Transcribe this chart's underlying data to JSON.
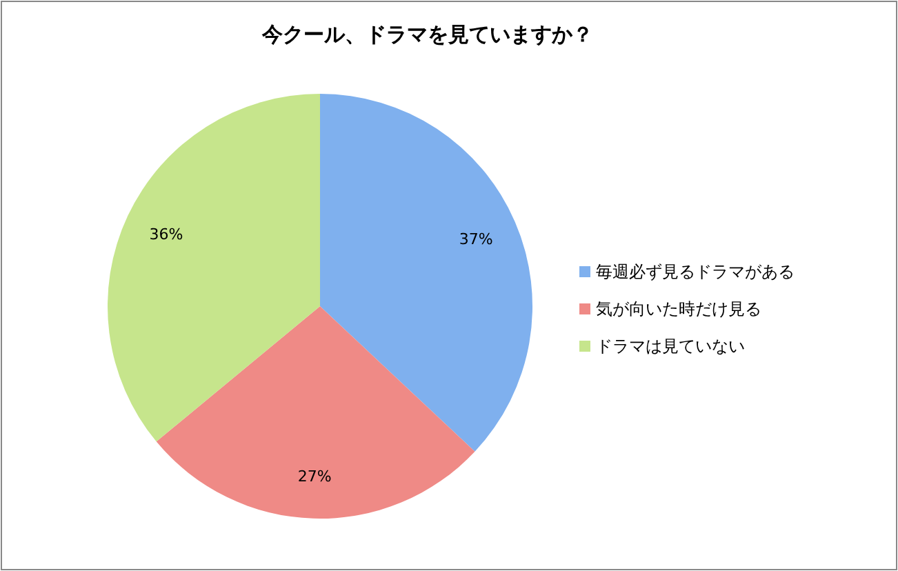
{
  "chart_data": {
    "type": "pie",
    "title": "今クール、ドラマを見ていますか？",
    "categories": [
      "毎週必ず見るドラマがある",
      "気が向いた時だけ見る",
      "ドラマは見ていない"
    ],
    "values": [
      37,
      27,
      36
    ],
    "value_labels": [
      "37%",
      "27%",
      "36%"
    ],
    "colors": [
      "#7fb0ee",
      "#ef8a86",
      "#c6e58c"
    ],
    "legend": "right"
  }
}
